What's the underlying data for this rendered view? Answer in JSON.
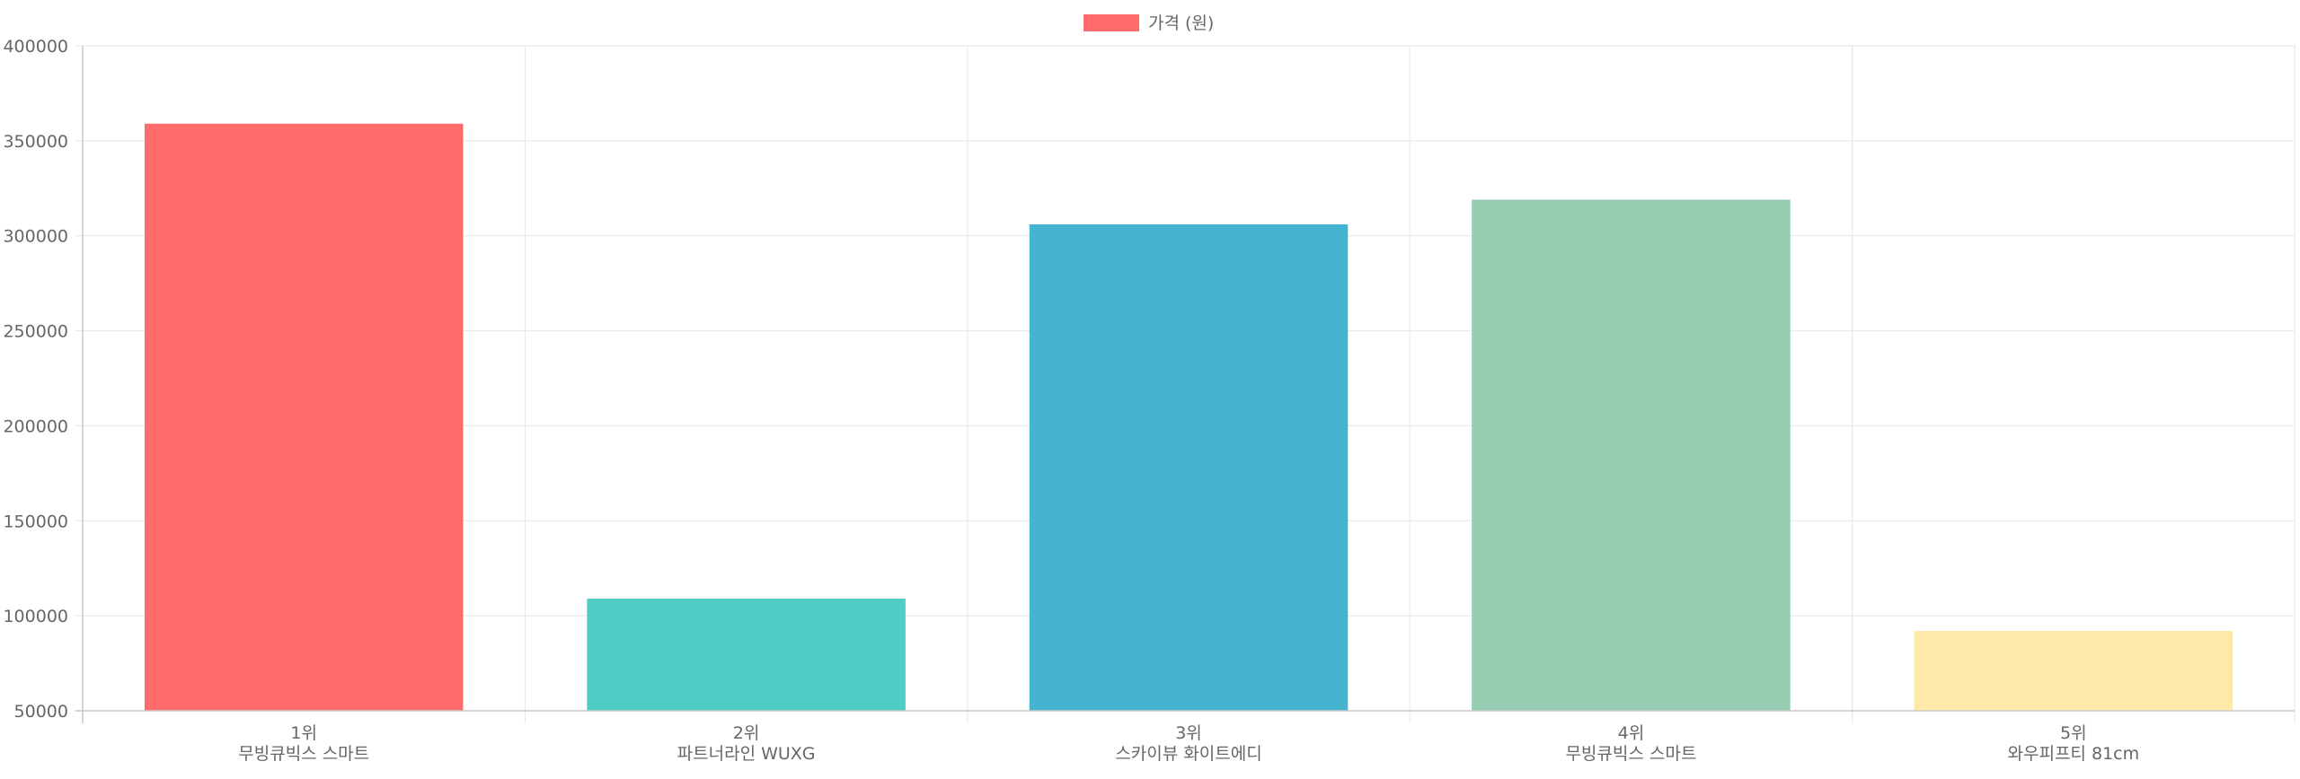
{
  "chart_data": {
    "type": "bar",
    "categories": [
      [
        "1위",
        "무빙큐빅스 스마트"
      ],
      [
        "2위",
        "파트너라인 WUXG"
      ],
      [
        "3위",
        "스카이뷰 화이트에디"
      ],
      [
        "4위",
        "무빙큐빅스 스마트"
      ],
      [
        "5위",
        "와우피프티 81cm"
      ]
    ],
    "series": [
      {
        "name": "가격 (원)",
        "values": [
          359000,
          109000,
          306000,
          319000,
          92000
        ]
      }
    ],
    "bar_colors": [
      "#ff6b6b",
      "#4ecdc4",
      "#45b4d0",
      "#96cdb2",
      "#ffe9a8"
    ],
    "legend_color": "#ff6b6b",
    "ylim": [
      50000,
      400000
    ],
    "yticks": [
      "400000",
      "350000",
      "300000",
      "250000",
      "200000",
      "150000",
      "100000",
      "50000"
    ],
    "ytick_values": [
      400000,
      350000,
      300000,
      250000,
      200000,
      150000,
      100000,
      50000
    ],
    "grid": true,
    "legend_position": "top-center"
  }
}
